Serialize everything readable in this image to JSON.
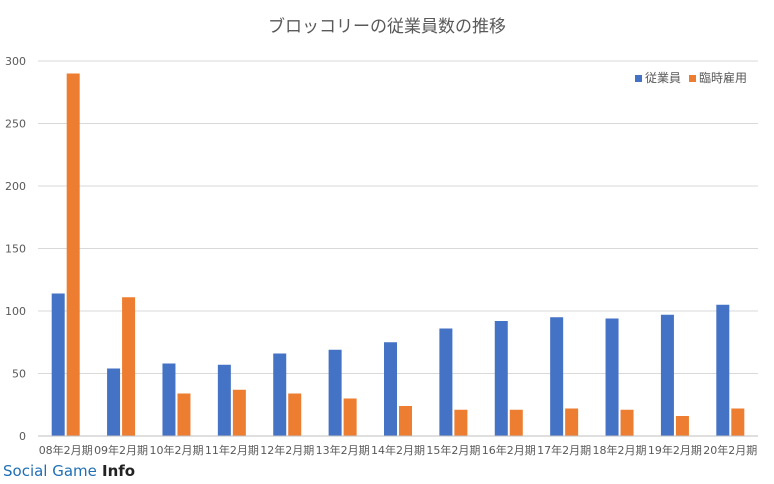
{
  "chart_data": {
    "type": "bar",
    "title": "ブロッコリーの従業員数の推移",
    "categories": [
      "08年2月期",
      "09年2月期",
      "10年2月期",
      "11年2月期",
      "12年2月期",
      "13年2月期",
      "14年2月期",
      "15年2月期",
      "16年2月期",
      "17年2月期",
      "18年2月期",
      "19年2月期",
      "20年2月期"
    ],
    "series": [
      {
        "name": "従業員",
        "color": "#4472c4",
        "values": [
          114,
          54,
          58,
          57,
          66,
          69,
          75,
          86,
          92,
          95,
          94,
          97,
          105
        ]
      },
      {
        "name": "臨時雇用",
        "color": "#ed7d31",
        "values": [
          290,
          111,
          34,
          37,
          34,
          30,
          24,
          21,
          21,
          22,
          21,
          16,
          22
        ]
      }
    ],
    "yticks": [
      0,
      50,
      100,
      150,
      200,
      250,
      300
    ],
    "ylim": [
      0,
      300
    ],
    "grid": true,
    "legend_position": "top-right"
  },
  "watermark": {
    "text_a": "Social Game",
    "text_b": "Info"
  }
}
